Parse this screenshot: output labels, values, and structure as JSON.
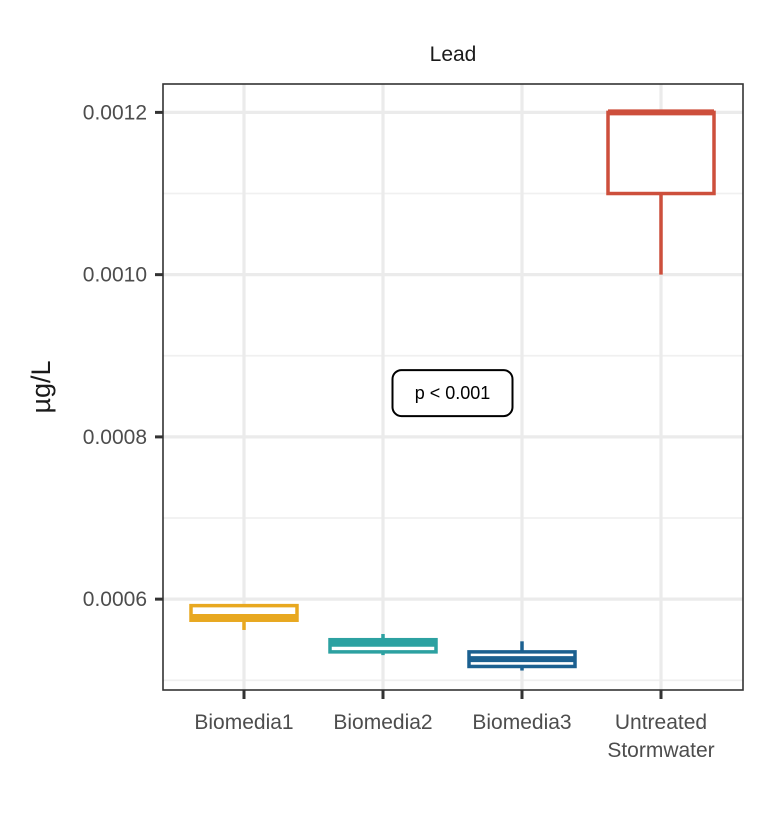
{
  "chart_data": {
    "type": "boxplot",
    "title": "Lead",
    "xlabel": "",
    "ylabel": "µg/L",
    "ylim": [
      0.000488,
      0.001235
    ],
    "y_major_ticks": [
      0.0006,
      0.0008,
      0.001,
      0.0012
    ],
    "y_tick_labels": [
      "0.0006",
      "0.0008",
      "0.0010",
      "0.0012"
    ],
    "y_minor_ticks": [
      0.0005,
      0.0007,
      0.0009,
      0.0011
    ],
    "grid": true,
    "legend": "none",
    "categories": [
      {
        "label_lines": [
          "Biomedia1"
        ],
        "color": "#E8A820",
        "min": 0.000562,
        "q1": 0.000574,
        "median": 0.000578,
        "q3": 0.000592,
        "max": 0.000593
      },
      {
        "label_lines": [
          "Biomedia2"
        ],
        "color": "#2CA1A1",
        "min": 0.000531,
        "q1": 0.000535,
        "median": 0.000545,
        "q3": 0.00055,
        "max": 0.000557
      },
      {
        "label_lines": [
          "Biomedia3"
        ],
        "color": "#1B6090",
        "min": 0.000512,
        "q1": 0.000517,
        "median": 0.000526,
        "q3": 0.000535,
        "max": 0.000548
      },
      {
        "label_lines": [
          "Untreated",
          "Stormwater"
        ],
        "color": "#CD4F3C",
        "min": 0.001,
        "q1": 0.0011,
        "median": 0.0012,
        "q3": 0.0012,
        "max": 0.0012
      }
    ],
    "annotation": {
      "text": "p < 0.001",
      "x_category_position": 2.5,
      "y": 0.000854
    }
  }
}
